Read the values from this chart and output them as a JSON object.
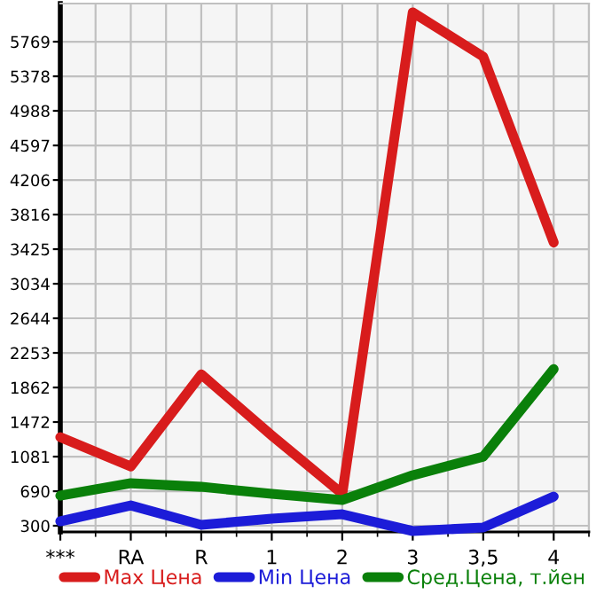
{
  "chart_data": {
    "type": "line",
    "categories": [
      "***",
      "RA",
      "R",
      "1",
      "2",
      "3",
      "3,5",
      "4"
    ],
    "series": [
      {
        "name": "Max Цена",
        "color": "#d81c1c",
        "values": [
          1300,
          970,
          2010,
          1320,
          660,
          6100,
          5600,
          3500
        ]
      },
      {
        "name": "Min Цена",
        "color": "#1c1cd8",
        "values": [
          350,
          530,
          310,
          380,
          430,
          240,
          280,
          630
        ]
      },
      {
        "name": "Сред.Цена, т.йен",
        "color": "#0a800a",
        "values": [
          640,
          780,
          740,
          660,
          590,
          870,
          1080,
          2070
        ]
      }
    ],
    "ylim": [
      230,
      6200
    ],
    "yticks": [
      300,
      690,
      1081,
      1472,
      1862,
      2253,
      2644,
      3034,
      3425,
      3816,
      4206,
      4597,
      4988,
      5378,
      5769
    ],
    "grid": true,
    "legend": "bottom",
    "marker": "none",
    "line_style": "solid"
  }
}
